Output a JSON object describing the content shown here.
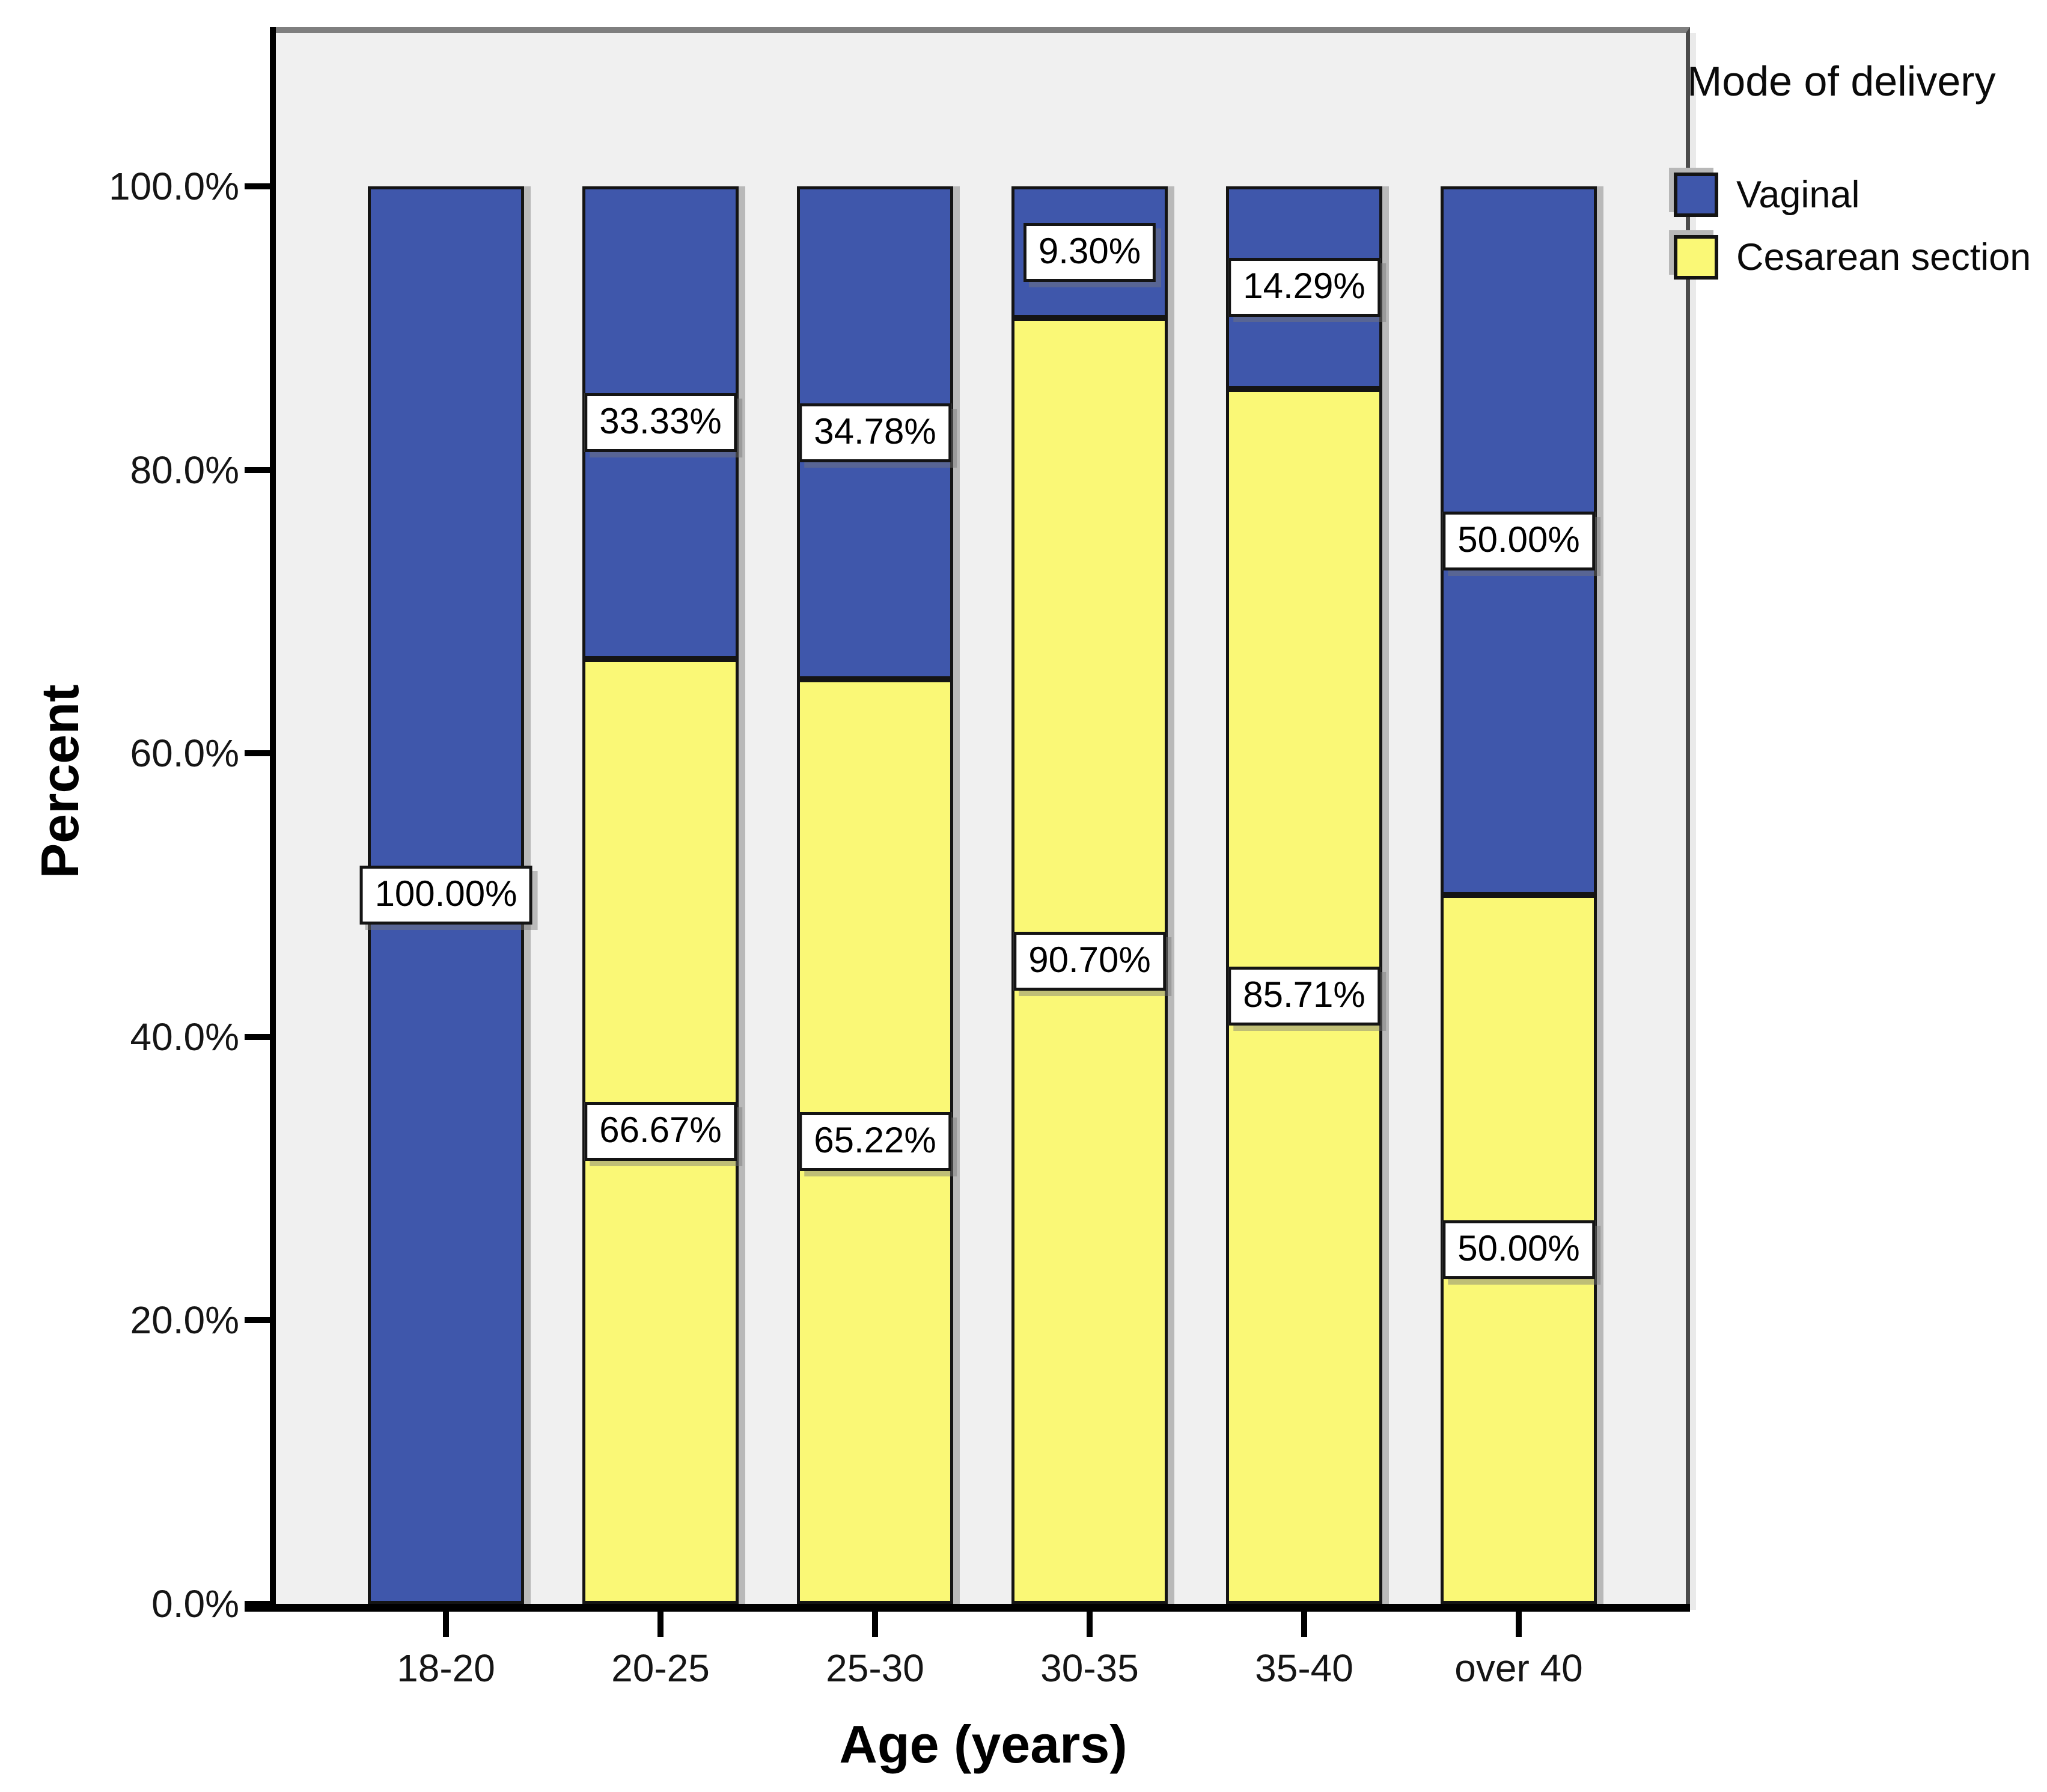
{
  "chart_data": {
    "type": "bar",
    "stacked": true,
    "percent_stacked": true,
    "title": "",
    "xlabel": "Age (years)",
    "ylabel": "Percent",
    "ylim": [
      0,
      100
    ],
    "grid": false,
    "yticks": [
      0,
      20,
      40,
      60,
      80,
      100
    ],
    "ytick_labels": [
      "0.0%",
      "20.0%",
      "40.0%",
      "60.0%",
      "80.0%",
      "100.0%"
    ],
    "categories": [
      "18-20",
      "20-25",
      "25-30",
      "30-35",
      "35-40",
      "over 40"
    ],
    "series": [
      {
        "name": "Vaginal",
        "stack_position": "top",
        "color": "#3f57ab",
        "values": [
          100.0,
          33.33,
          34.78,
          9.3,
          14.29,
          50.0
        ],
        "labels": [
          "100.00%",
          "33.33%",
          "34.78%",
          "9.30%",
          "14.29%",
          "50.00%"
        ]
      },
      {
        "name": "Cesarean section",
        "stack_position": "bottom",
        "color": "#faf876",
        "values": [
          0,
          66.67,
          65.22,
          90.7,
          85.71,
          50.0
        ],
        "labels": [
          "",
          "66.67%",
          "65.22%",
          "90.70%",
          "85.71%",
          "50.00%"
        ]
      }
    ],
    "legend": {
      "title": "Mode of delivery",
      "position": "top-right"
    }
  },
  "colors": {
    "vaginal_blue": "#3f57ab",
    "cesarean_yellow": "#faf876",
    "plot_background": "#f0f0f0",
    "frame_top_gray": "#7f7f7f",
    "frame_right_gray": "#4a4a4a",
    "axis_black": "#000000",
    "bar_border": "#141414",
    "label_box_bg": "#ffffff"
  }
}
